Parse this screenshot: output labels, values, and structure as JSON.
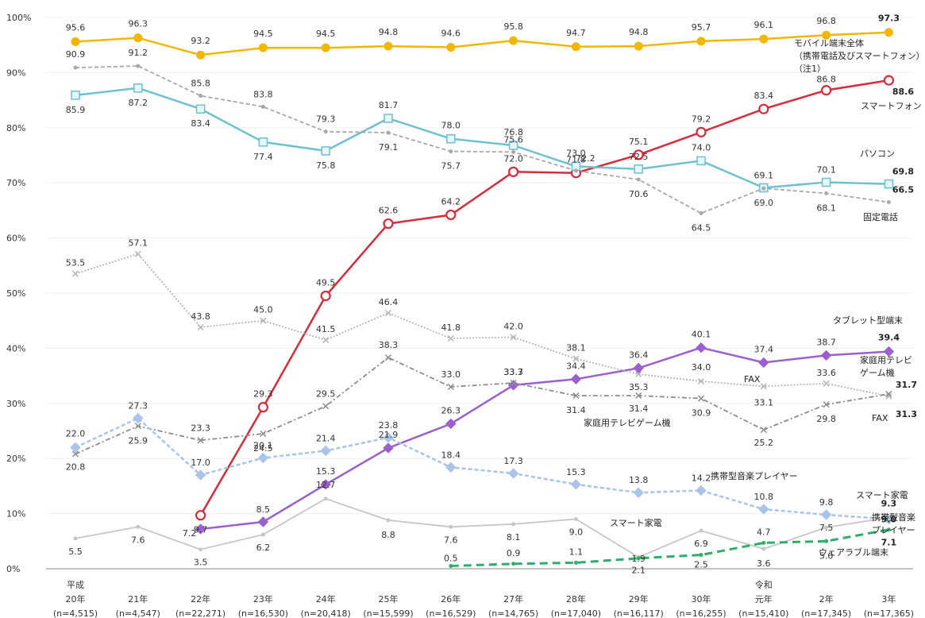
{
  "chart_data": {
    "type": "line",
    "ylim": [
      0,
      100
    ],
    "y_ticks": [
      "0%",
      "10%",
      "20%",
      "30%",
      "40%",
      "50%",
      "60%",
      "70%",
      "80%",
      "90%",
      "100%"
    ],
    "x_ticks": [
      [
        "平成",
        "20年",
        "(n=4,515)"
      ],
      [
        "21年",
        "(n=4,547)"
      ],
      [
        "22年",
        "(n=22,271)"
      ],
      [
        "23年",
        "(n=16,530)"
      ],
      [
        "24年",
        "(n=20,418)"
      ],
      [
        "25年",
        "(n=15,599)"
      ],
      [
        "26年",
        "(n=16,529)"
      ],
      [
        "27年",
        "(n=14,765)"
      ],
      [
        "28年",
        "(n=17,040)"
      ],
      [
        "29年",
        "(n=16,117)"
      ],
      [
        "30年",
        "(n=16,255)"
      ],
      [
        "令和",
        "元年",
        "(n=15,410)"
      ],
      [
        "2年",
        "(n=17,345)"
      ],
      [
        "3年",
        "(n=17,365)"
      ]
    ],
    "series": [
      {
        "name": "モバイル端末全体\n（携帯電話及びスマートフォン）\n（注1）",
        "color": "#f2b705",
        "style": "solid",
        "marker": "circle",
        "values": [
          95.6,
          96.3,
          93.2,
          94.5,
          94.5,
          94.8,
          94.6,
          95.8,
          94.7,
          94.8,
          95.7,
          96.1,
          96.8,
          97.3
        ]
      },
      {
        "name": "スマートフォン",
        "color": "#d62c3b",
        "style": "solid",
        "marker": "ring",
        "values": [
          null,
          null,
          9.7,
          29.3,
          49.5,
          62.6,
          64.2,
          72.0,
          71.8,
          75.1,
          79.2,
          83.4,
          86.8,
          88.6
        ]
      },
      {
        "name": "パソコン",
        "color": "#6ec1d0",
        "style": "solid",
        "marker": "square",
        "values": [
          85.9,
          87.2,
          83.4,
          77.4,
          75.8,
          81.7,
          78.0,
          76.8,
          73.0,
          72.5,
          74.0,
          69.1,
          70.1,
          69.8
        ]
      },
      {
        "name": "固定電話",
        "color": "#a8a8a8",
        "style": "dashed",
        "marker": "dot",
        "values": [
          90.9,
          91.2,
          85.8,
          83.8,
          79.3,
          79.1,
          75.7,
          75.6,
          72.2,
          70.6,
          64.5,
          69.0,
          68.1,
          66.5
        ]
      },
      {
        "name": "タブレット型端末",
        "color": "#9b5fce",
        "style": "solid",
        "marker": "diamond",
        "values": [
          null,
          null,
          7.2,
          8.5,
          15.3,
          21.9,
          26.3,
          33.3,
          34.4,
          36.4,
          40.1,
          37.4,
          38.7,
          39.4
        ]
      },
      {
        "name": "FAX",
        "color": "#b5b5b5",
        "style": "dotted",
        "marker": "x",
        "values": [
          53.5,
          57.1,
          43.8,
          45.0,
          41.5,
          46.4,
          41.8,
          42.0,
          38.1,
          35.3,
          34.0,
          33.1,
          33.6,
          31.3
        ]
      },
      {
        "name": "家庭用テレビゲーム機",
        "color": "#8c8c8c",
        "style": "dashdot",
        "marker": "x",
        "values": [
          20.8,
          25.9,
          23.3,
          24.5,
          29.5,
          38.3,
          33.0,
          33.7,
          31.4,
          31.4,
          30.9,
          25.2,
          29.8,
          31.7
        ]
      },
      {
        "name": "携帯型音楽プレイヤー",
        "color": "#a9c4e8",
        "style": "dashed",
        "marker": "diamond",
        "values": [
          22.0,
          27.3,
          17.0,
          20.1,
          21.4,
          23.8,
          18.4,
          17.3,
          15.3,
          13.8,
          14.2,
          10.8,
          9.8,
          9.0
        ]
      },
      {
        "name": "スマート家電",
        "color": "#c6c6c6",
        "style": "solid",
        "marker": "dot",
        "values": [
          5.5,
          7.6,
          3.5,
          6.2,
          12.7,
          8.8,
          7.6,
          8.1,
          9.0,
          2.1,
          6.9,
          3.6,
          7.5,
          9.3
        ]
      },
      {
        "name": "ウェアラブル端末",
        "color": "#2fae6b",
        "style": "longdash",
        "marker": "dot",
        "values": [
          null,
          null,
          null,
          null,
          null,
          null,
          0.5,
          0.9,
          1.1,
          1.9,
          2.5,
          4.7,
          5.0,
          7.1
        ]
      }
    ],
    "data_labels": [
      {
        "s": 0,
        "i": 0,
        "text": "95.6"
      },
      {
        "s": 0,
        "i": 1,
        "text": "96.3"
      },
      {
        "s": 0,
        "i": 2,
        "text": "93.2"
      },
      {
        "s": 0,
        "i": 3,
        "text": "94.5"
      },
      {
        "s": 0,
        "i": 4,
        "text": "94.5"
      },
      {
        "s": 0,
        "i": 5,
        "text": "94.8"
      },
      {
        "s": 0,
        "i": 6,
        "text": "94.6"
      },
      {
        "s": 0,
        "i": 7,
        "text": "95.8"
      },
      {
        "s": 0,
        "i": 8,
        "text": "94.7"
      },
      {
        "s": 0,
        "i": 9,
        "text": "94.8"
      },
      {
        "s": 0,
        "i": 10,
        "text": "95.7"
      },
      {
        "s": 0,
        "i": 11,
        "text": "96.1"
      },
      {
        "s": 0,
        "i": 12,
        "text": "96.8"
      },
      {
        "s": 0,
        "i": 13,
        "text": "97.3"
      },
      {
        "s": 1,
        "i": 2,
        "text": "9.7"
      },
      {
        "s": 1,
        "i": 3,
        "text": "29.3"
      },
      {
        "s": 1,
        "i": 4,
        "text": "49.5"
      },
      {
        "s": 1,
        "i": 5,
        "text": "62.6"
      },
      {
        "s": 1,
        "i": 6,
        "text": "64.2"
      },
      {
        "s": 1,
        "i": 7,
        "text": "72.0"
      },
      {
        "s": 1,
        "i": 8,
        "text": "71.8"
      },
      {
        "s": 1,
        "i": 9,
        "text": "75.1"
      },
      {
        "s": 1,
        "i": 10,
        "text": "79.2"
      },
      {
        "s": 1,
        "i": 11,
        "text": "83.4"
      },
      {
        "s": 1,
        "i": 12,
        "text": "86.8"
      },
      {
        "s": 1,
        "i": 13,
        "text": "88.6"
      },
      {
        "s": 2,
        "i": 0,
        "text": "85.9"
      },
      {
        "s": 2,
        "i": 1,
        "text": "87.2"
      },
      {
        "s": 2,
        "i": 2,
        "text": "83.4"
      },
      {
        "s": 2,
        "i": 3,
        "text": "77.4"
      },
      {
        "s": 2,
        "i": 4,
        "text": "75.8"
      },
      {
        "s": 2,
        "i": 5,
        "text": "81.7"
      },
      {
        "s": 2,
        "i": 6,
        "text": "78.0"
      },
      {
        "s": 2,
        "i": 7,
        "text": "76.8"
      },
      {
        "s": 2,
        "i": 8,
        "text": "73.0"
      },
      {
        "s": 2,
        "i": 9,
        "text": "72.5"
      },
      {
        "s": 2,
        "i": 10,
        "text": "74.0"
      },
      {
        "s": 2,
        "i": 11,
        "text": "69.1"
      },
      {
        "s": 2,
        "i": 12,
        "text": "70.1"
      },
      {
        "s": 2,
        "i": 13,
        "text": "69.8"
      },
      {
        "s": 3,
        "i": 0,
        "text": "90.9"
      },
      {
        "s": 3,
        "i": 1,
        "text": "91.2"
      },
      {
        "s": 3,
        "i": 2,
        "text": "85.8"
      },
      {
        "s": 3,
        "i": 3,
        "text": "83.8"
      },
      {
        "s": 3,
        "i": 4,
        "text": "79.3"
      },
      {
        "s": 3,
        "i": 5,
        "text": "79.1"
      },
      {
        "s": 3,
        "i": 6,
        "text": "75.7"
      },
      {
        "s": 3,
        "i": 7,
        "text": "75.6"
      },
      {
        "s": 3,
        "i": 8,
        "text": "72.2"
      },
      {
        "s": 3,
        "i": 9,
        "text": "70.6"
      },
      {
        "s": 3,
        "i": 10,
        "text": "64.5"
      },
      {
        "s": 3,
        "i": 11,
        "text": "69.0"
      },
      {
        "s": 3,
        "i": 12,
        "text": "68.1"
      },
      {
        "s": 3,
        "i": 13,
        "text": "66.5"
      },
      {
        "s": 4,
        "i": 2,
        "text": "7.2"
      },
      {
        "s": 4,
        "i": 3,
        "text": "8.5"
      },
      {
        "s": 4,
        "i": 4,
        "text": "15.3"
      },
      {
        "s": 4,
        "i": 5,
        "text": "21.9"
      },
      {
        "s": 4,
        "i": 6,
        "text": "26.3"
      },
      {
        "s": 4,
        "i": 7,
        "text": "33.3"
      },
      {
        "s": 4,
        "i": 8,
        "text": "34.4"
      },
      {
        "s": 4,
        "i": 9,
        "text": "36.4"
      },
      {
        "s": 4,
        "i": 10,
        "text": "40.1"
      },
      {
        "s": 4,
        "i": 11,
        "text": "37.4"
      },
      {
        "s": 4,
        "i": 12,
        "text": "38.7"
      },
      {
        "s": 4,
        "i": 13,
        "text": "39.4"
      },
      {
        "s": 5,
        "i": 0,
        "text": "53.5"
      },
      {
        "s": 5,
        "i": 1,
        "text": "57.1"
      },
      {
        "s": 5,
        "i": 2,
        "text": "43.8"
      },
      {
        "s": 5,
        "i": 3,
        "text": "45.0"
      },
      {
        "s": 5,
        "i": 4,
        "text": "41.5"
      },
      {
        "s": 5,
        "i": 5,
        "text": "46.4"
      },
      {
        "s": 5,
        "i": 6,
        "text": "41.8"
      },
      {
        "s": 5,
        "i": 7,
        "text": "42.0"
      },
      {
        "s": 5,
        "i": 8,
        "text": "38.1"
      },
      {
        "s": 5,
        "i": 9,
        "text": "35.3"
      },
      {
        "s": 5,
        "i": 10,
        "text": "34.0"
      },
      {
        "s": 5,
        "i": 11,
        "text": "33.1"
      },
      {
        "s": 5,
        "i": 12,
        "text": "33.6"
      },
      {
        "s": 5,
        "i": 13,
        "text": "31.3"
      },
      {
        "s": 6,
        "i": 0,
        "text": "20.8"
      },
      {
        "s": 6,
        "i": 1,
        "text": "25.9"
      },
      {
        "s": 6,
        "i": 2,
        "text": "23.3"
      },
      {
        "s": 6,
        "i": 3,
        "text": "24.5"
      },
      {
        "s": 6,
        "i": 4,
        "text": "29.5"
      },
      {
        "s": 6,
        "i": 5,
        "text": "38.3"
      },
      {
        "s": 6,
        "i": 6,
        "text": "33.0"
      },
      {
        "s": 6,
        "i": 7,
        "text": "33.7"
      },
      {
        "s": 6,
        "i": 8,
        "text": "31.4"
      },
      {
        "s": 6,
        "i": 9,
        "text": "31.4"
      },
      {
        "s": 6,
        "i": 10,
        "text": "30.9"
      },
      {
        "s": 6,
        "i": 11,
        "text": "25.2"
      },
      {
        "s": 6,
        "i": 12,
        "text": "29.8"
      },
      {
        "s": 6,
        "i": 13,
        "text": "31.7"
      },
      {
        "s": 7,
        "i": 0,
        "text": "22.0"
      },
      {
        "s": 7,
        "i": 1,
        "text": "27.3"
      },
      {
        "s": 7,
        "i": 2,
        "text": "17.0"
      },
      {
        "s": 7,
        "i": 3,
        "text": "20.1"
      },
      {
        "s": 7,
        "i": 4,
        "text": "21.4"
      },
      {
        "s": 7,
        "i": 5,
        "text": "23.8"
      },
      {
        "s": 7,
        "i": 6,
        "text": "18.4"
      },
      {
        "s": 7,
        "i": 7,
        "text": "17.3"
      },
      {
        "s": 7,
        "i": 8,
        "text": "15.3"
      },
      {
        "s": 7,
        "i": 9,
        "text": "13.8"
      },
      {
        "s": 7,
        "i": 10,
        "text": "14.2"
      },
      {
        "s": 7,
        "i": 11,
        "text": "10.8"
      },
      {
        "s": 7,
        "i": 12,
        "text": "9.8"
      },
      {
        "s": 7,
        "i": 13,
        "text": "9.0"
      },
      {
        "s": 8,
        "i": 0,
        "text": "5.5"
      },
      {
        "s": 8,
        "i": 1,
        "text": "7.6"
      },
      {
        "s": 8,
        "i": 2,
        "text": "3.5"
      },
      {
        "s": 8,
        "i": 3,
        "text": "6.2"
      },
      {
        "s": 8,
        "i": 4,
        "text": "12.7"
      },
      {
        "s": 8,
        "i": 5,
        "text": "8.8"
      },
      {
        "s": 8,
        "i": 6,
        "text": "7.6"
      },
      {
        "s": 8,
        "i": 7,
        "text": "8.1"
      },
      {
        "s": 8,
        "i": 8,
        "text": "9.0"
      },
      {
        "s": 8,
        "i": 9,
        "text": "2.1"
      },
      {
        "s": 8,
        "i": 10,
        "text": "6.9"
      },
      {
        "s": 8,
        "i": 11,
        "text": "3.6"
      },
      {
        "s": 8,
        "i": 12,
        "text": "7.5"
      },
      {
        "s": 8,
        "i": 13,
        "text": "9.3"
      },
      {
        "s": 9,
        "i": 6,
        "text": "0.5"
      },
      {
        "s": 9,
        "i": 7,
        "text": "0.9"
      },
      {
        "s": 9,
        "i": 8,
        "text": "1.1"
      },
      {
        "s": 9,
        "i": 9,
        "text": "1.9"
      },
      {
        "s": 9,
        "i": 10,
        "text": "2.5"
      },
      {
        "s": 9,
        "i": 11,
        "text": "4.7"
      },
      {
        "s": 9,
        "i": 12,
        "text": "5.0"
      },
      {
        "s": 9,
        "i": 13,
        "text": "7.1"
      }
    ],
    "series_labels": [
      {
        "text": "モバイル端末全体"
      },
      {
        "text": "（携帯電話及びスマートフォン）"
      },
      {
        "text": "（注1）"
      },
      {
        "text": "スマートフォン"
      },
      {
        "text": "パソコン"
      },
      {
        "text": "固定電話"
      },
      {
        "text": "タブレット型端末"
      },
      {
        "text": "家庭用テレビ"
      },
      {
        "text": "ゲーム機"
      },
      {
        "text": "FAX"
      },
      {
        "text": "FAX"
      },
      {
        "text": "家庭用テレビゲーム機"
      },
      {
        "text": "携帯型音楽プレイヤー"
      },
      {
        "text": "スマート家電"
      },
      {
        "text": "スマート家電"
      },
      {
        "text": "携帯型音楽"
      },
      {
        "text": "プレイヤー"
      },
      {
        "text": "ウェアラブル端末"
      }
    ]
  }
}
